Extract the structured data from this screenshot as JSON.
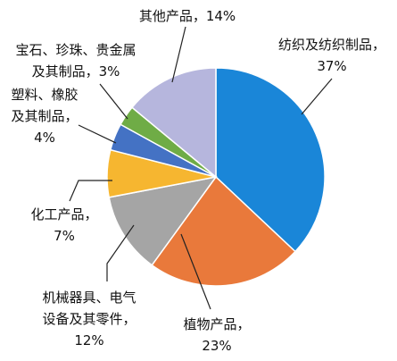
{
  "chart_data": {
    "type": "pie",
    "categories": [
      "纺织及纺织制品，",
      "植物产品，",
      "机械器具、电气\n设备及其零件，",
      "化工产品，",
      "塑料、橡胶\n及其制品，",
      "宝石、珍珠、贵金属\n及其制品，",
      "其他产品，"
    ],
    "values": [
      37,
      23,
      12,
      7,
      4,
      3,
      14
    ],
    "value_labels": [
      "37%",
      "23%",
      "12%",
      "7%",
      "4%",
      "3%",
      "14%"
    ],
    "colors": [
      "#1a86d8",
      "#e9793b",
      "#a5a5a5",
      "#f6b630",
      "#4472c4",
      "#6fac46",
      "#b6b6dd"
    ]
  }
}
